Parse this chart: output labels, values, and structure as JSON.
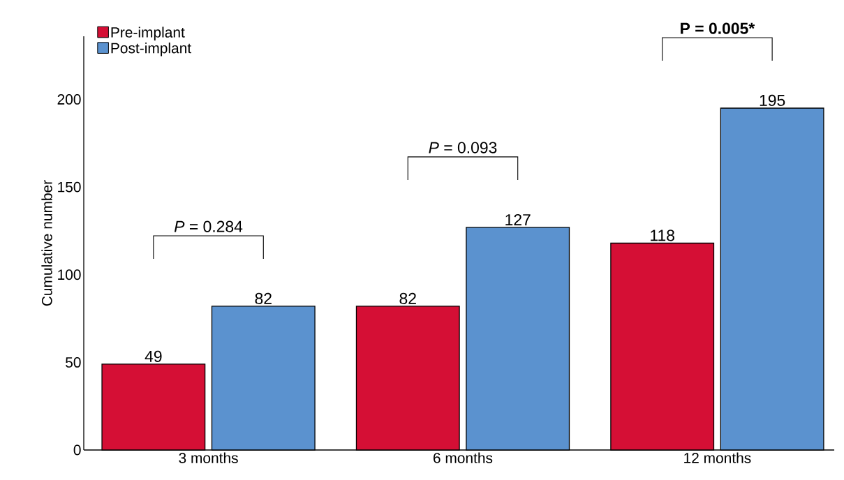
{
  "chart_data": {
    "type": "bar",
    "ylabel": "Cumulative number",
    "categories": [
      "3 months",
      "6 months",
      "12 months"
    ],
    "series": [
      {
        "name": "Pre-implant",
        "color": "#d50f35",
        "values": [
          49,
          82,
          118
        ]
      },
      {
        "name": "Post-implant",
        "color": "#5b92cf",
        "values": [
          82,
          127,
          195
        ]
      }
    ],
    "ylim": [
      0,
      236
    ],
    "yticks": [
      0,
      50,
      100,
      150,
      200
    ],
    "data_labels": true,
    "legend": "top left",
    "grid": false,
    "annotations": [
      "*P* = 0.284",
      "*P* = 0.093",
      "P = 0.005*"
    ]
  }
}
